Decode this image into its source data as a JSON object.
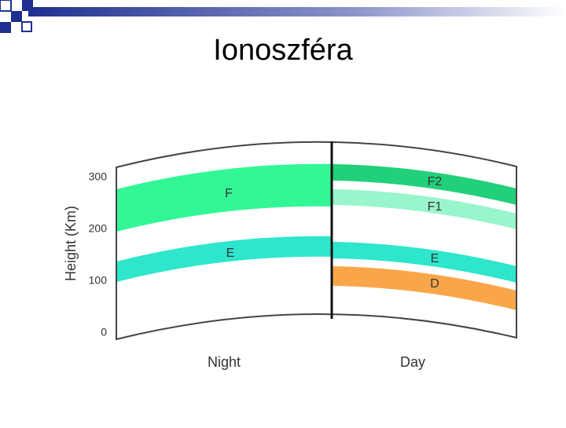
{
  "slide": {
    "title": "Ionoszféra",
    "diagram": {
      "y_axis_label": "Height (Km)",
      "y_ticks": [
        300,
        200,
        100,
        0
      ],
      "columns": [
        {
          "label": "Night",
          "layers": [
            "F",
            "E"
          ]
        },
        {
          "label": "Day",
          "layers": [
            "F2",
            "F1",
            "E",
            "D"
          ]
        }
      ]
    }
  }
}
